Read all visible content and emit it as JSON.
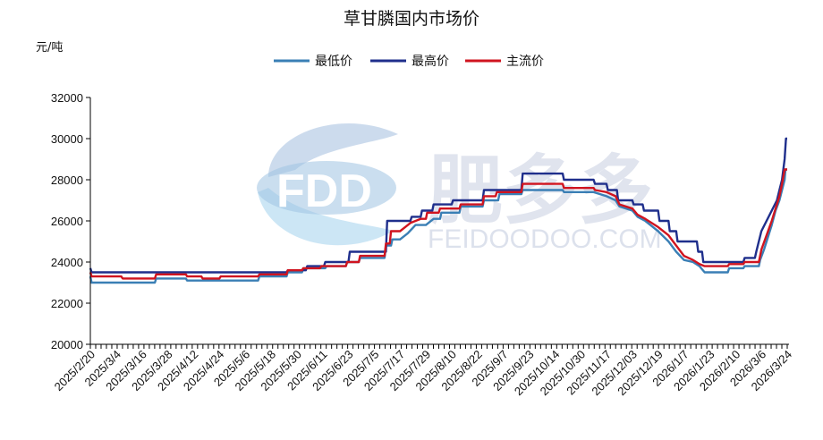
{
  "chart_data": {
    "type": "line",
    "title": "草甘膦国内市场价",
    "ylabel": "元/吨",
    "xlabel": "",
    "ylim": [
      20000,
      32000
    ],
    "yticks": [
      "20000",
      "22000",
      "24000",
      "26000",
      "28000",
      "30000",
      "32000"
    ],
    "xtick_labels": [
      "2025/2/20",
      "2025/3/4",
      "2025/3/16",
      "2025/3/28",
      "2025/4/12",
      "2025/4/24",
      "2025/5/6",
      "2025/5/18",
      "2025/5/30",
      "2025/6/11",
      "2025/6/23",
      "2025/7/5",
      "2025/7/17",
      "2025/7/29",
      "2025/8/10",
      "2025/8/22",
      "2025/9/7",
      "2025/9/23",
      "2025/10/14",
      "2025/10/30",
      "2025/11/17",
      "2025/12/03",
      "2025/12/19",
      "2026/1/7",
      "2026/1/23",
      "2026/2/10",
      "2026/3/6",
      "2026/3/24"
    ],
    "x_range": [
      0,
      27
    ],
    "series": [
      {
        "name": "最低价",
        "color": "#3a7fb5",
        "points": [
          [
            0,
            23300
          ],
          [
            0.05,
            23000
          ],
          [
            1,
            23000
          ],
          [
            2,
            23000
          ],
          [
            2.5,
            23000
          ],
          [
            2.55,
            23200
          ],
          [
            3,
            23200
          ],
          [
            3.7,
            23200
          ],
          [
            3.75,
            23100
          ],
          [
            5,
            23100
          ],
          [
            6.5,
            23100
          ],
          [
            6.55,
            23300
          ],
          [
            7.6,
            23300
          ],
          [
            7.65,
            23500
          ],
          [
            8.2,
            23500
          ],
          [
            8.25,
            23700
          ],
          [
            9,
            23700
          ],
          [
            9.1,
            23700
          ],
          [
            9.15,
            23800
          ],
          [
            9.9,
            23800
          ],
          [
            9.95,
            24000
          ],
          [
            10.4,
            24000
          ],
          [
            10.45,
            24200
          ],
          [
            11,
            24200
          ],
          [
            11.4,
            24200
          ],
          [
            11.45,
            24800
          ],
          [
            11.65,
            24800
          ],
          [
            11.7,
            25100
          ],
          [
            12,
            25100
          ],
          [
            12.3,
            25400
          ],
          [
            12.6,
            25800
          ],
          [
            13,
            25800
          ],
          [
            13.3,
            26100
          ],
          [
            13.55,
            26100
          ],
          [
            13.6,
            26400
          ],
          [
            14.3,
            26400
          ],
          [
            14.35,
            26700
          ],
          [
            15.2,
            26700
          ],
          [
            15.25,
            27000
          ],
          [
            15.8,
            27000
          ],
          [
            15.85,
            27300
          ],
          [
            16.7,
            27300
          ],
          [
            16.75,
            27500
          ],
          [
            18.3,
            27500
          ],
          [
            18.35,
            27400
          ],
          [
            19.5,
            27400
          ],
          [
            20,
            27200
          ],
          [
            20.35,
            27000
          ],
          [
            20.5,
            26700
          ],
          [
            21,
            26500
          ],
          [
            21.2,
            26200
          ],
          [
            21.5,
            26000
          ],
          [
            22,
            25500
          ],
          [
            22.4,
            25000
          ],
          [
            22.7,
            24500
          ],
          [
            23,
            24100
          ],
          [
            23.35,
            24000
          ],
          [
            23.6,
            23800
          ],
          [
            23.8,
            23500
          ],
          [
            24.7,
            23500
          ],
          [
            24.75,
            23700
          ],
          [
            25.3,
            23700
          ],
          [
            25.35,
            23800
          ],
          [
            25.9,
            23800
          ],
          [
            25.95,
            24100
          ],
          [
            26.1,
            24600
          ],
          [
            26.25,
            25200
          ],
          [
            26.4,
            25800
          ],
          [
            26.55,
            26500
          ],
          [
            26.7,
            27000
          ],
          [
            26.8,
            27500
          ],
          [
            26.9,
            28000
          ],
          [
            26.93,
            28500
          ],
          [
            27,
            28500
          ]
        ]
      },
      {
        "name": "最高价",
        "color": "#1f2f8c",
        "points": [
          [
            0,
            23700
          ],
          [
            0.05,
            23500
          ],
          [
            1,
            23500
          ],
          [
            3,
            23500
          ],
          [
            5,
            23500
          ],
          [
            6.5,
            23500
          ],
          [
            7.6,
            23500
          ],
          [
            7.65,
            23600
          ],
          [
            8.35,
            23600
          ],
          [
            8.4,
            23800
          ],
          [
            9.05,
            23800
          ],
          [
            9.1,
            24000
          ],
          [
            10,
            24000
          ],
          [
            10.05,
            24500
          ],
          [
            11,
            24500
          ],
          [
            11.45,
            24500
          ],
          [
            11.5,
            26000
          ],
          [
            12.4,
            26000
          ],
          [
            12.45,
            26200
          ],
          [
            12.8,
            26200
          ],
          [
            12.85,
            26500
          ],
          [
            13.25,
            26500
          ],
          [
            13.3,
            26800
          ],
          [
            14,
            26800
          ],
          [
            14.05,
            27000
          ],
          [
            15.2,
            27000
          ],
          [
            15.25,
            27500
          ],
          [
            16.7,
            27500
          ],
          [
            16.75,
            28300
          ],
          [
            18.3,
            28300
          ],
          [
            18.35,
            28000
          ],
          [
            19.5,
            28000
          ],
          [
            19.55,
            27800
          ],
          [
            20,
            27800
          ],
          [
            20.05,
            27500
          ],
          [
            20.4,
            27500
          ],
          [
            20.45,
            27000
          ],
          [
            21,
            27000
          ],
          [
            21.05,
            26800
          ],
          [
            21.4,
            26800
          ],
          [
            21.45,
            26500
          ],
          [
            22,
            26500
          ],
          [
            22.05,
            26000
          ],
          [
            22.4,
            26000
          ],
          [
            22.45,
            25500
          ],
          [
            22.7,
            25500
          ],
          [
            22.75,
            25000
          ],
          [
            23.5,
            25000
          ],
          [
            23.55,
            24500
          ],
          [
            23.7,
            24500
          ],
          [
            23.75,
            24000
          ],
          [
            24.7,
            24000
          ],
          [
            25.3,
            24000
          ],
          [
            25.35,
            24200
          ],
          [
            25.75,
            24200
          ],
          [
            25.8,
            24500
          ],
          [
            26,
            25500
          ],
          [
            26.2,
            26000
          ],
          [
            26.4,
            26500
          ],
          [
            26.6,
            27000
          ],
          [
            26.7,
            27500
          ],
          [
            26.8,
            28000
          ],
          [
            26.9,
            29000
          ],
          [
            26.95,
            30000
          ],
          [
            27,
            30000
          ]
        ]
      },
      {
        "name": "主流价",
        "color": "#d0141f",
        "points": [
          [
            0,
            23500
          ],
          [
            0.05,
            23300
          ],
          [
            1,
            23300
          ],
          [
            1.2,
            23300
          ],
          [
            1.25,
            23200
          ],
          [
            2.5,
            23200
          ],
          [
            2.55,
            23400
          ],
          [
            3.7,
            23400
          ],
          [
            3.75,
            23300
          ],
          [
            4.3,
            23300
          ],
          [
            4.35,
            23200
          ],
          [
            5,
            23200
          ],
          [
            5.05,
            23300
          ],
          [
            6.5,
            23300
          ],
          [
            6.55,
            23400
          ],
          [
            7.6,
            23400
          ],
          [
            7.65,
            23600
          ],
          [
            8.2,
            23600
          ],
          [
            8.25,
            23700
          ],
          [
            8.9,
            23700
          ],
          [
            8.95,
            23800
          ],
          [
            9.9,
            23800
          ],
          [
            9.95,
            24000
          ],
          [
            10.4,
            24000
          ],
          [
            10.45,
            24300
          ],
          [
            11,
            24300
          ],
          [
            11.4,
            24300
          ],
          [
            11.45,
            24900
          ],
          [
            11.6,
            24900
          ],
          [
            11.65,
            25500
          ],
          [
            12,
            25500
          ],
          [
            12.4,
            25900
          ],
          [
            12.8,
            26100
          ],
          [
            13,
            26100
          ],
          [
            13.05,
            26400
          ],
          [
            13.5,
            26400
          ],
          [
            13.55,
            26600
          ],
          [
            14.3,
            26600
          ],
          [
            14.35,
            26800
          ],
          [
            15.2,
            26800
          ],
          [
            15.25,
            27200
          ],
          [
            15.7,
            27200
          ],
          [
            15.75,
            27400
          ],
          [
            16.7,
            27400
          ],
          [
            16.75,
            27800
          ],
          [
            18.3,
            27800
          ],
          [
            18.35,
            27600
          ],
          [
            19.5,
            27600
          ],
          [
            19.55,
            27500
          ],
          [
            20,
            27400
          ],
          [
            20.35,
            27200
          ],
          [
            20.5,
            26800
          ],
          [
            21,
            26600
          ],
          [
            21.2,
            26300
          ],
          [
            21.5,
            26100
          ],
          [
            22,
            25700
          ],
          [
            22.4,
            25300
          ],
          [
            22.7,
            24800
          ],
          [
            23,
            24300
          ],
          [
            23.35,
            24100
          ],
          [
            23.6,
            23900
          ],
          [
            23.8,
            23800
          ],
          [
            24.7,
            23800
          ],
          [
            24.75,
            23900
          ],
          [
            25.3,
            23900
          ],
          [
            25.35,
            24000
          ],
          [
            25.9,
            24000
          ],
          [
            26.0,
            24600
          ],
          [
            26.2,
            25300
          ],
          [
            26.4,
            26000
          ],
          [
            26.55,
            26600
          ],
          [
            26.7,
            27200
          ],
          [
            26.8,
            27800
          ],
          [
            26.9,
            28500
          ],
          [
            27,
            28500
          ]
        ]
      }
    ],
    "watermark": {
      "logo": "FDD",
      "brand": "肥多多",
      "site": "FEIDOODOO.COM"
    }
  }
}
